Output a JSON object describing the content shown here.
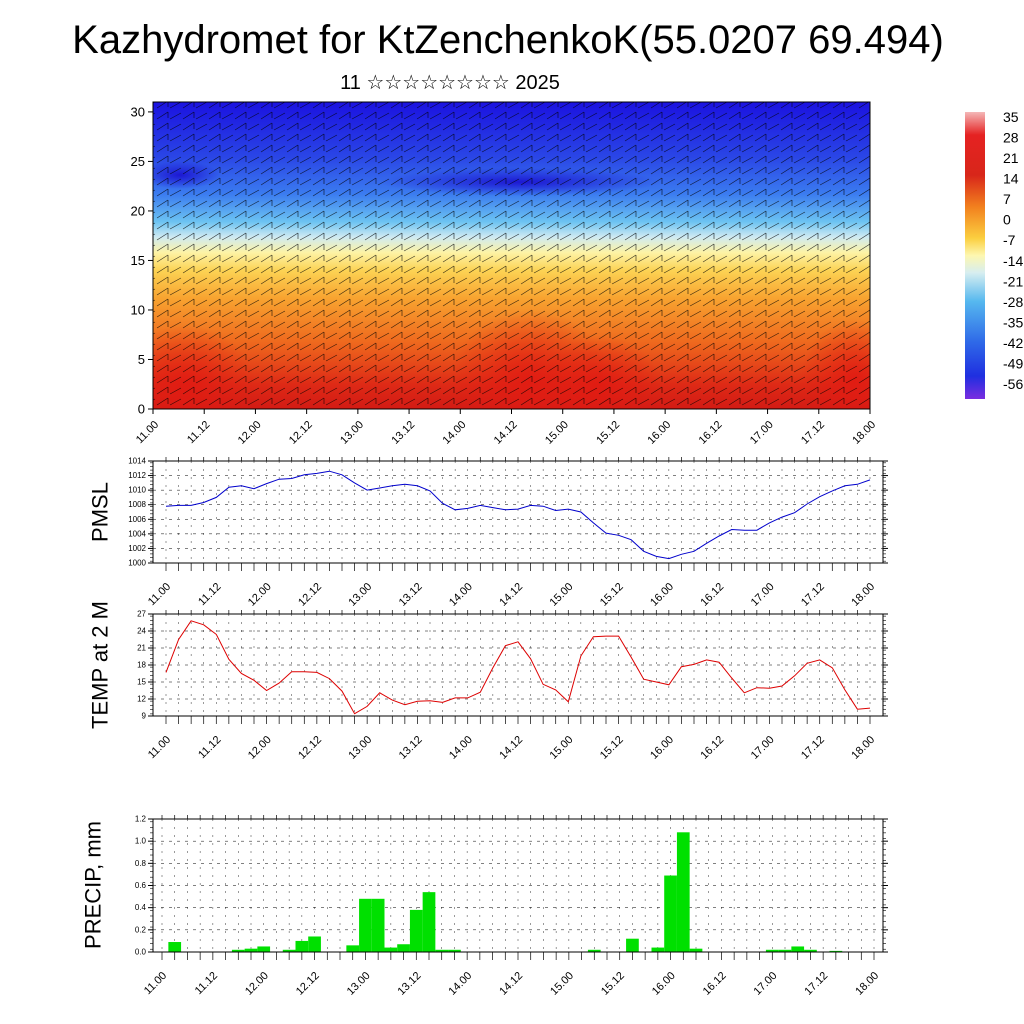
{
  "title": "Kazhydromet for KtZenchenkoK(55.0207 69.494)",
  "subtitle": "11 ☆☆☆☆☆☆☆☆ 2025",
  "chart_data": [
    {
      "type": "heatmap",
      "name": "cross-section",
      "y_ticks": [
        "0",
        "5",
        "10",
        "15",
        "20",
        "25",
        "30"
      ],
      "ylim": [
        0,
        31
      ],
      "x_ticks": [
        "11.00",
        "11.12",
        "12.00",
        "12.12",
        "13.00",
        "13.12",
        "14.00",
        "14.12",
        "15.00",
        "15.12",
        "16.00",
        "16.12",
        "17.00",
        "17.12",
        "18.00"
      ],
      "colorbar_labels": [
        "35",
        "28",
        "21",
        "14",
        "7",
        "0",
        "-7",
        "-14",
        "-21",
        "-28",
        "-35",
        "-42",
        "-49",
        "-56"
      ]
    },
    {
      "type": "line",
      "ylabel": "PMSL",
      "ylim": [
        1000,
        1014
      ],
      "y_ticks": [
        "1000",
        "1002",
        "1004",
        "1006",
        "1008",
        "1010",
        "1012",
        "1014"
      ],
      "x_ticks": [
        "11.00",
        "11.12",
        "12.00",
        "12.12",
        "13.00",
        "13.12",
        "14.00",
        "14.12",
        "15.00",
        "15.12",
        "16.00",
        "16.12",
        "17.00",
        "17.12",
        "18.00"
      ],
      "series_color": "#0000cc",
      "values": [
        1007.8,
        1007.9,
        1007.9,
        1008.3,
        1009.0,
        1010.4,
        1010.6,
        1010.2,
        1010.9,
        1011.5,
        1011.6,
        1012.1,
        1012.3,
        1012.6,
        1012.1,
        1011.0,
        1010.0,
        1010.3,
        1010.6,
        1010.8,
        1010.6,
        1009.9,
        1008.2,
        1007.3,
        1007.5,
        1007.9,
        1007.6,
        1007.3,
        1007.4,
        1007.9,
        1007.8,
        1007.2,
        1007.4,
        1007.0,
        1005.5,
        1004.1,
        1003.8,
        1003.2,
        1001.6,
        1000.9,
        1000.6,
        1001.2,
        1001.6,
        1002.7,
        1003.7,
        1004.6,
        1004.5,
        1004.5,
        1005.5,
        1006.3,
        1006.9,
        1008.1,
        1009.1,
        1009.9,
        1010.6,
        1010.8,
        1011.4
      ]
    },
    {
      "type": "line",
      "ylabel": "TEMP at 2 M",
      "ylim": [
        9,
        27
      ],
      "y_ticks": [
        "9",
        "12",
        "15",
        "18",
        "21",
        "24",
        "27"
      ],
      "x_ticks": [
        "11.00",
        "11.12",
        "12.00",
        "12.12",
        "13.00",
        "13.12",
        "14.00",
        "14.12",
        "15.00",
        "15.12",
        "16.00",
        "16.12",
        "17.00",
        "17.12",
        "18.00"
      ],
      "series_color": "#dd0000",
      "values": [
        16.7,
        22.5,
        25.8,
        25.1,
        23.4,
        19.0,
        16.5,
        15.3,
        13.5,
        14.8,
        16.8,
        16.8,
        16.7,
        15.6,
        13.4,
        9.4,
        10.7,
        13.1,
        11.8,
        11.0,
        11.6,
        11.7,
        11.4,
        12.2,
        12.2,
        13.2,
        17.5,
        21.4,
        22.1,
        19.1,
        14.6,
        13.6,
        11.5,
        19.6,
        23.0,
        23.1,
        23.1,
        19.4,
        15.5,
        15.0,
        14.5,
        17.7,
        18.1,
        18.9,
        18.5,
        15.7,
        13.1,
        14.0,
        13.9,
        14.3,
        16.1,
        18.3,
        18.9,
        17.5,
        13.6,
        10.2,
        10.4
      ]
    },
    {
      "type": "bar",
      "ylabel": "PRECIP, mm",
      "ylim": [
        0,
        1.2
      ],
      "y_ticks": [
        "0.0",
        "0.2",
        "0.4",
        "0.6",
        "0.8",
        "1.0",
        "1.2"
      ],
      "x_ticks": [
        "11.00",
        "11.12",
        "12.00",
        "12.12",
        "13.00",
        "13.12",
        "14.00",
        "14.12",
        "15.00",
        "15.12",
        "16.00",
        "16.12",
        "17.00",
        "17.12",
        "18.00"
      ],
      "bar_color": "#00e000",
      "values": [
        0,
        0.09,
        0,
        0,
        0,
        0,
        0.02,
        0.03,
        0.05,
        0,
        0.02,
        0.1,
        0.14,
        0,
        0,
        0.06,
        0.48,
        0.48,
        0.04,
        0.07,
        0.38,
        0.54,
        0.02,
        0.02,
        0,
        0,
        0,
        0,
        0,
        0,
        0,
        0,
        0,
        0,
        0.02,
        0,
        0,
        0.12,
        0,
        0.04,
        0.69,
        1.08,
        0.03,
        0,
        0,
        0,
        0,
        0,
        0.02,
        0.02,
        0.05,
        0.02,
        0,
        0.01,
        0,
        0,
        0
      ]
    }
  ]
}
